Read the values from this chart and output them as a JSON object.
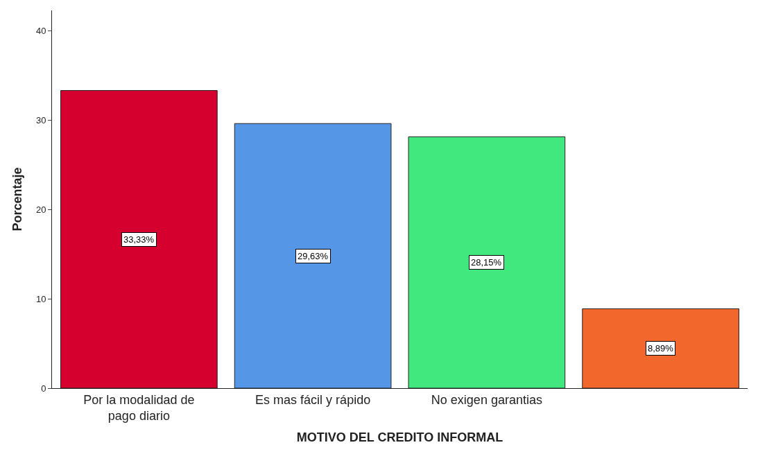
{
  "chart_data": {
    "type": "bar",
    "xlabel": "MOTIVO DEL CREDITO INFORMAL",
    "ylabel": "Porcentaje",
    "categories": [
      "Por la modalidad de pago diario",
      "Es mas fácil y rápido",
      "No exigen garantias",
      null
    ],
    "values": [
      33.33,
      29.63,
      28.15,
      8.89
    ],
    "value_labels": [
      "33,33%",
      "29,63%",
      "28,15%",
      "8,89%"
    ],
    "colors": [
      "#d6002f",
      "#5596e6",
      "#41e87e",
      "#f2672b"
    ],
    "ylim": [
      0,
      42.3
    ],
    "yticks": [
      0,
      10,
      20,
      30,
      40
    ]
  }
}
